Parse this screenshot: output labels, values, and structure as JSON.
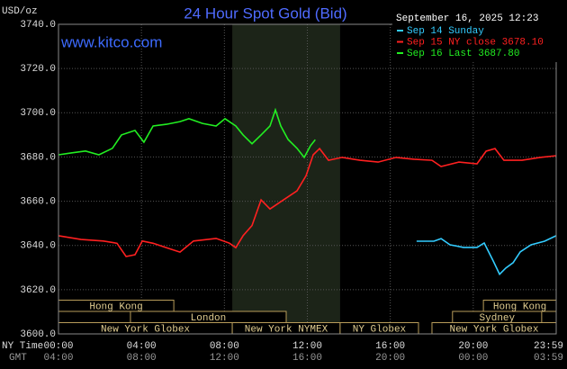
{
  "chart_data": {
    "type": "line",
    "title": "24 Hour Spot Gold (Bid)",
    "watermark": "www.kitco.com",
    "timestamp": "September 16, 2025 12:23",
    "ylabel": "USD/oz",
    "xlabel": "NY Time",
    "xlabel_secondary": "GMT",
    "xlim": [
      0,
      24
    ],
    "ylim": [
      3600,
      3740
    ],
    "yticks": [
      {
        "value": 3600,
        "label": "3600.0"
      },
      {
        "value": 3620,
        "label": "3620.0"
      },
      {
        "value": 3640,
        "label": "3640.0"
      },
      {
        "value": 3660,
        "label": "3660.0"
      },
      {
        "value": 3680,
        "label": "3680.0"
      },
      {
        "value": 3700,
        "label": "3700.0"
      },
      {
        "value": 3720,
        "label": "3720.0"
      },
      {
        "value": 3740,
        "label": "3740.0"
      }
    ],
    "xticks": [
      {
        "value": 0,
        "label": "00:00"
      },
      {
        "value": 4,
        "label": "04:00"
      },
      {
        "value": 8,
        "label": "08:00"
      },
      {
        "value": 12,
        "label": "12:00"
      },
      {
        "value": 16,
        "label": "16:00"
      },
      {
        "value": 20,
        "label": "20:00"
      },
      {
        "value": 23.98,
        "label": "23:59"
      }
    ],
    "xticks_secondary": [
      "04:00",
      "08:00",
      "12:00",
      "16:00",
      "20:00",
      "00:00",
      "03:59"
    ],
    "grid": true,
    "series": [
      {
        "name": "Sep 14 Sunday",
        "color": "#33ccff",
        "x": [
          17.27,
          18.1,
          18.45,
          18.88,
          19.53,
          20.18,
          20.53,
          20.96,
          21.27,
          21.57,
          21.92,
          22.27,
          22.79,
          23.44,
          24
        ],
        "values": [
          3641.9,
          3641.9,
          3643.1,
          3640.3,
          3639.1,
          3639.1,
          3641.1,
          3633,
          3627,
          3629.8,
          3632.2,
          3637.1,
          3640.3,
          3641.9,
          3644.4
        ]
      },
      {
        "name": "Sep 15 NY close 3678.10",
        "color": "#ff2020",
        "x": [
          0,
          1.09,
          2.17,
          2.82,
          3.26,
          3.69,
          4.04,
          4.56,
          5.21,
          5.86,
          6.51,
          7.6,
          8.25,
          8.55,
          8.9,
          9.33,
          9.77,
          10.2,
          10.85,
          11.5,
          11.94,
          12.28,
          12.59,
          13.02,
          13.67,
          14.54,
          15.41,
          16.28,
          17.14,
          18.01,
          18.45,
          19.31,
          20.18,
          20.62,
          21.05,
          21.48,
          22.35,
          23.22,
          24
        ],
        "values": [
          3644.4,
          3642.7,
          3642,
          3641,
          3635,
          3635.8,
          3642,
          3641,
          3639,
          3637,
          3642,
          3643.2,
          3641,
          3639,
          3644.4,
          3649,
          3660.6,
          3656.5,
          3660.6,
          3664.7,
          3671.6,
          3681,
          3683.8,
          3678.5,
          3679.8,
          3678.5,
          3677.7,
          3679.8,
          3679,
          3678.5,
          3675.7,
          3677.7,
          3676.9,
          3682.6,
          3683.8,
          3678.5,
          3678.5,
          3679.8,
          3680.6
        ]
      },
      {
        "name": "Sep 16 Last 3687.80",
        "color": "#22ee22",
        "x": [
          0,
          0.65,
          1.3,
          1.95,
          2.6,
          3.04,
          3.69,
          4.12,
          4.56,
          5.21,
          5.86,
          6.29,
          6.94,
          7.6,
          8.03,
          8.55,
          8.9,
          9.33,
          9.77,
          10.2,
          10.46,
          10.72,
          11.07,
          11.5,
          11.85,
          12.15,
          12.38
        ],
        "values": [
          3681,
          3681.9,
          3682.7,
          3681,
          3683.9,
          3690,
          3692,
          3686.7,
          3694,
          3694.8,
          3696,
          3697.3,
          3695.2,
          3694,
          3697.3,
          3694,
          3690,
          3686,
          3690,
          3694,
          3701.3,
          3694,
          3687.9,
          3683.9,
          3679.8,
          3685.1,
          3687.8
        ]
      }
    ],
    "sessions": [
      {
        "name": "Hong Kong",
        "start": 0,
        "end": 5.56,
        "row": 0
      },
      {
        "name": "Hong Kong",
        "start": 20.49,
        "end": 24,
        "row": 0
      },
      {
        "name": "London",
        "start": 3.47,
        "end": 10.98,
        "row": 1
      },
      {
        "name": "Sydney",
        "start": 19.0,
        "end": 23.3,
        "row": 1
      },
      {
        "name": "New York Globex",
        "start": 0,
        "end": 8.38,
        "row": 2
      },
      {
        "name": "New York NYMEX",
        "start": 8.38,
        "end": 13.58,
        "row": 2,
        "shaded": true
      },
      {
        "name": "NY Globex",
        "start": 13.58,
        "end": 17.36,
        "row": 2
      },
      {
        "name": "New York Globex",
        "start": 18.01,
        "end": 24,
        "row": 2
      }
    ]
  }
}
